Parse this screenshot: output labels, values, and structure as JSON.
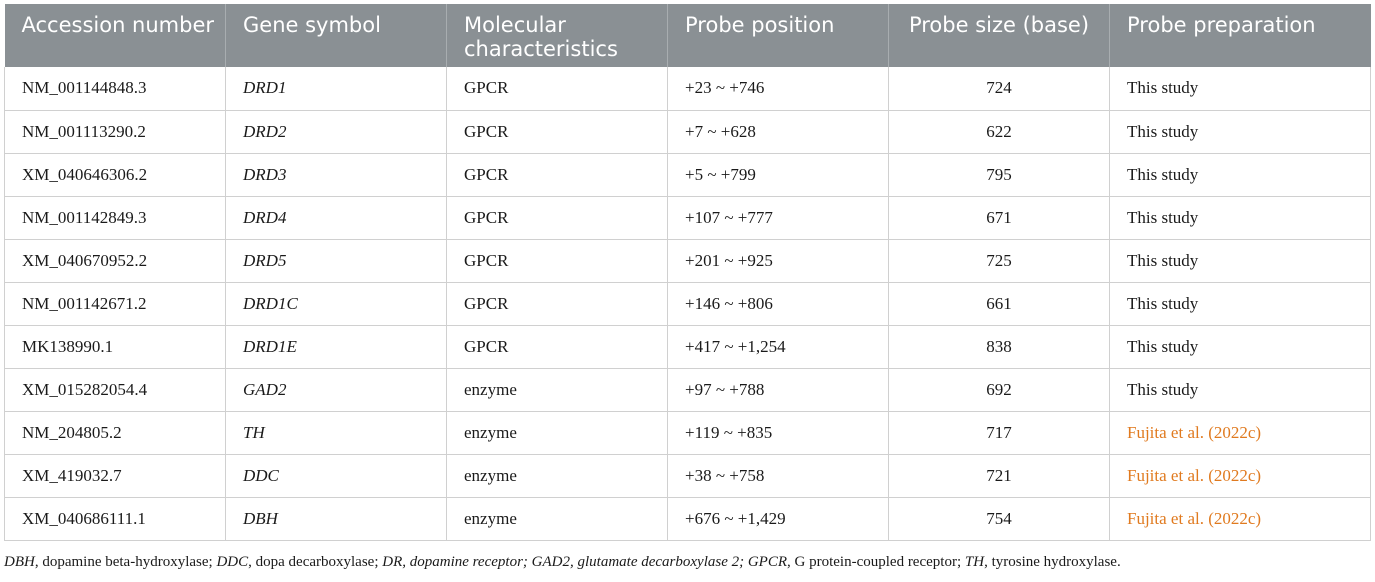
{
  "headers": [
    "Accession number",
    "Gene symbol",
    "Molecular characteristics",
    "Probe position",
    "Probe size (base)",
    "Probe preparation"
  ],
  "rows": [
    [
      "NM_001144848.3",
      "DRD1",
      "GPCR",
      "+23 ~ +746",
      "724",
      "This study"
    ],
    [
      "NM_001113290.2",
      "DRD2",
      "GPCR",
      "+7 ~ +628",
      "622",
      "This study"
    ],
    [
      "XM_040646306.2",
      "DRD3",
      "GPCR",
      "+5 ~ +799",
      "795",
      "This study"
    ],
    [
      "NM_001142849.3",
      "DRD4",
      "GPCR",
      "+107 ~ +777",
      "671",
      "This study"
    ],
    [
      "XM_040670952.2",
      "DRD5",
      "GPCR",
      "+201 ~ +925",
      "725",
      "This study"
    ],
    [
      "NM_001142671.2",
      "DRD1C",
      "GPCR",
      "+146 ~ +806",
      "661",
      "This study"
    ],
    [
      "MK138990.1",
      "DRD1E",
      "GPCR",
      "+417 ~ +1,254",
      "838",
      "This study"
    ],
    [
      "XM_015282054.4",
      "GAD2",
      "enzyme",
      "+97 ~ +788",
      "692",
      "This study"
    ],
    [
      "NM_204805.2",
      "TH",
      "enzyme",
      "+119 ~ +835",
      "717",
      "Fujita et al. (2022c)"
    ],
    [
      "XM_419032.7",
      "DDC",
      "enzyme",
      "+38 ~ +758",
      "721",
      "Fujita et al. (2022c)"
    ],
    [
      "XM_040686111.1",
      "DBH",
      "enzyme",
      "+676 ~ +1,429",
      "754",
      "Fujita et al. (2022c)"
    ]
  ],
  "footnote": [
    {
      "text": "DBH",
      "italic": true
    },
    {
      "text": ", dopamine beta-hydroxylase; ",
      "italic": false
    },
    {
      "text": "DDC",
      "italic": true
    },
    {
      "text": ", dopa decarboxylase; ",
      "italic": false
    },
    {
      "text": "DR, dopamine receptor; GAD2, glutamate decarboxylase 2; GPCR",
      "italic": true
    },
    {
      "text": ", G protein-coupled receptor; ",
      "italic": false
    },
    {
      "text": "TH",
      "italic": true
    },
    {
      "text": ", tyrosine hydroxylase.",
      "italic": false
    }
  ],
  "colors": {
    "header_bg": "#8a9094",
    "header_text": "#ffffff",
    "link": "#e07a1f",
    "border": "#d0d0d0"
  }
}
